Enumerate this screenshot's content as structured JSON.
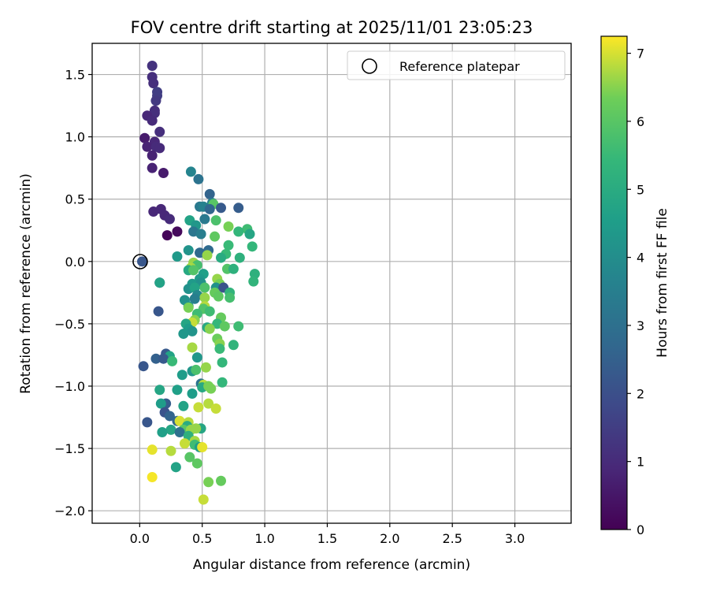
{
  "chart_data": {
    "type": "scatter",
    "title": "FOV centre drift starting at 2025/11/01 23:05:23",
    "xlabel": "Angular distance from reference (arcmin)",
    "ylabel": "Rotation from reference (arcmin)",
    "xlim": [
      -0.38,
      3.45
    ],
    "ylim": [
      -2.1,
      1.75
    ],
    "xticks": [
      "0.0",
      "0.5",
      "1.0",
      "1.5",
      "2.0",
      "2.5",
      "3.0"
    ],
    "yticks": [
      "1.5",
      "1.0",
      "0.5",
      "0.0",
      "−0.5",
      "−1.0",
      "−1.5",
      "−2.0"
    ],
    "grid": true,
    "legend": {
      "position": "top-right",
      "entries": [
        "Reference platepar"
      ]
    },
    "colorbar": {
      "label": "Hours from first FF file",
      "range": [
        0,
        7.25
      ],
      "ticks": [
        "0",
        "1",
        "2",
        "3",
        "4",
        "5",
        "6",
        "7"
      ],
      "colormap": "viridis"
    },
    "reference": {
      "x": 0.0,
      "y": 0.0
    },
    "points": [
      {
        "x": 0.1,
        "y": 1.57,
        "h": 1.2
      },
      {
        "x": 0.1,
        "y": 1.48,
        "h": 1.1
      },
      {
        "x": 0.11,
        "y": 1.43,
        "h": 1.1
      },
      {
        "x": 0.14,
        "y": 1.36,
        "h": 1.5
      },
      {
        "x": 0.14,
        "y": 1.33,
        "h": 1.5
      },
      {
        "x": 0.13,
        "y": 1.29,
        "h": 1.4
      },
      {
        "x": 0.12,
        "y": 1.21,
        "h": 1.1
      },
      {
        "x": 0.12,
        "y": 1.19,
        "h": 1.1
      },
      {
        "x": 0.06,
        "y": 1.17,
        "h": 0.9
      },
      {
        "x": 0.1,
        "y": 1.13,
        "h": 1.0
      },
      {
        "x": 0.16,
        "y": 1.04,
        "h": 1.1
      },
      {
        "x": 0.04,
        "y": 0.99,
        "h": 0.6
      },
      {
        "x": 0.12,
        "y": 0.96,
        "h": 0.9
      },
      {
        "x": 0.06,
        "y": 0.92,
        "h": 0.8
      },
      {
        "x": 0.13,
        "y": 0.92,
        "h": 1.0
      },
      {
        "x": 0.16,
        "y": 0.91,
        "h": 1.0
      },
      {
        "x": 0.1,
        "y": 0.85,
        "h": 0.8
      },
      {
        "x": 0.1,
        "y": 0.75,
        "h": 0.8
      },
      {
        "x": 0.19,
        "y": 0.71,
        "h": 0.6
      },
      {
        "x": 0.11,
        "y": 0.4,
        "h": 0.9
      },
      {
        "x": 0.17,
        "y": 0.42,
        "h": 0.9
      },
      {
        "x": 0.2,
        "y": 0.37,
        "h": 0.9
      },
      {
        "x": 0.24,
        "y": 0.34,
        "h": 1.0
      },
      {
        "x": 0.3,
        "y": 0.24,
        "h": 0.2
      },
      {
        "x": 0.22,
        "y": 0.21,
        "h": 0.1
      },
      {
        "x": 0.41,
        "y": 0.72,
        "h": 3.7
      },
      {
        "x": 0.47,
        "y": 0.66,
        "h": 3.1
      },
      {
        "x": 0.56,
        "y": 0.54,
        "h": 2.6
      },
      {
        "x": 0.58,
        "y": 0.47,
        "h": 3.5
      },
      {
        "x": 0.59,
        "y": 0.46,
        "h": 6.0
      },
      {
        "x": 0.48,
        "y": 0.44,
        "h": 3.3
      },
      {
        "x": 0.51,
        "y": 0.44,
        "h": 3.6
      },
      {
        "x": 0.56,
        "y": 0.42,
        "h": 2.7
      },
      {
        "x": 0.65,
        "y": 0.43,
        "h": 2.3
      },
      {
        "x": 0.79,
        "y": 0.43,
        "h": 2.4
      },
      {
        "x": 0.52,
        "y": 0.34,
        "h": 3.3
      },
      {
        "x": 0.61,
        "y": 0.33,
        "h": 5.8
      },
      {
        "x": 0.4,
        "y": 0.33,
        "h": 4.7
      },
      {
        "x": 0.45,
        "y": 0.29,
        "h": 4.3
      },
      {
        "x": 0.71,
        "y": 0.28,
        "h": 6.4
      },
      {
        "x": 0.86,
        "y": 0.26,
        "h": 5.6
      },
      {
        "x": 0.79,
        "y": 0.24,
        "h": 5.4
      },
      {
        "x": 0.43,
        "y": 0.24,
        "h": 3.2
      },
      {
        "x": 0.49,
        "y": 0.22,
        "h": 3.5
      },
      {
        "x": 0.88,
        "y": 0.22,
        "h": 4.8
      },
      {
        "x": 0.6,
        "y": 0.2,
        "h": 6.1
      },
      {
        "x": 0.71,
        "y": 0.13,
        "h": 5.5
      },
      {
        "x": 0.9,
        "y": 0.12,
        "h": 5.4
      },
      {
        "x": 0.39,
        "y": 0.09,
        "h": 4.2
      },
      {
        "x": 0.55,
        "y": 0.09,
        "h": 2.8
      },
      {
        "x": 0.48,
        "y": 0.07,
        "h": 2.8
      },
      {
        "x": 0.69,
        "y": 0.06,
        "h": 5.5
      },
      {
        "x": 0.3,
        "y": 0.04,
        "h": 4.4
      },
      {
        "x": 0.54,
        "y": 0.05,
        "h": 6.6
      },
      {
        "x": 0.65,
        "y": 0.03,
        "h": 5.0
      },
      {
        "x": 0.8,
        "y": 0.03,
        "h": 5.2
      },
      {
        "x": 0.43,
        "y": -0.01,
        "h": 6.6
      },
      {
        "x": 0.46,
        "y": -0.03,
        "h": 5.7
      },
      {
        "x": 0.41,
        "y": -0.05,
        "h": 6.7
      },
      {
        "x": 0.39,
        "y": -0.07,
        "h": 4.9
      },
      {
        "x": 0.43,
        "y": -0.07,
        "h": 5.9
      },
      {
        "x": 0.7,
        "y": -0.06,
        "h": 5.9
      },
      {
        "x": 0.75,
        "y": -0.06,
        "h": 5.2
      },
      {
        "x": 0.51,
        "y": -0.1,
        "h": 4.6
      },
      {
        "x": 0.92,
        "y": -0.1,
        "h": 5.2
      },
      {
        "x": 0.48,
        "y": -0.14,
        "h": 4.4
      },
      {
        "x": 0.62,
        "y": -0.14,
        "h": 6.6
      },
      {
        "x": 0.91,
        "y": -0.16,
        "h": 5.3
      },
      {
        "x": 0.16,
        "y": -0.17,
        "h": 1.8
      },
      {
        "x": 0.16,
        "y": -0.17,
        "h": 4.7
      },
      {
        "x": 0.42,
        "y": -0.18,
        "h": 4.4
      },
      {
        "x": 0.49,
        "y": -0.17,
        "h": 4.1
      },
      {
        "x": 0.64,
        "y": -0.18,
        "h": 6.4
      },
      {
        "x": 0.39,
        "y": -0.22,
        "h": 4.1
      },
      {
        "x": 0.44,
        "y": -0.21,
        "h": 4.7
      },
      {
        "x": 0.52,
        "y": -0.21,
        "h": 5.8
      },
      {
        "x": 0.61,
        "y": -0.21,
        "h": 4.1
      },
      {
        "x": 0.67,
        "y": -0.21,
        "h": 2.1
      },
      {
        "x": 0.6,
        "y": -0.25,
        "h": 6.2
      },
      {
        "x": 0.72,
        "y": -0.25,
        "h": 5.3
      },
      {
        "x": 0.46,
        "y": -0.27,
        "h": 3.8
      },
      {
        "x": 0.52,
        "y": -0.29,
        "h": 6.6
      },
      {
        "x": 0.63,
        "y": -0.28,
        "h": 6.1
      },
      {
        "x": 0.72,
        "y": -0.29,
        "h": 5.7
      },
      {
        "x": 0.36,
        "y": -0.31,
        "h": 4.1
      },
      {
        "x": 0.44,
        "y": -0.3,
        "h": 3.5
      },
      {
        "x": 0.39,
        "y": -0.36,
        "h": 4.2
      },
      {
        "x": 0.39,
        "y": -0.37,
        "h": 6.4
      },
      {
        "x": 0.52,
        "y": -0.36,
        "h": 6.8
      },
      {
        "x": 0.51,
        "y": -0.38,
        "h": 5.9
      },
      {
        "x": 0.56,
        "y": -0.4,
        "h": 5.6
      },
      {
        "x": 0.15,
        "y": -0.4,
        "h": 2.2
      },
      {
        "x": 0.46,
        "y": -0.42,
        "h": 5.6
      },
      {
        "x": 0.65,
        "y": -0.45,
        "h": 6.2
      },
      {
        "x": 0.44,
        "y": -0.47,
        "h": 6.5
      },
      {
        "x": 0.42,
        "y": -0.49,
        "h": 6.9
      },
      {
        "x": 0.62,
        "y": -0.5,
        "h": 5.4
      },
      {
        "x": 0.68,
        "y": -0.52,
        "h": 6.1
      },
      {
        "x": 0.79,
        "y": -0.52,
        "h": 5.6
      },
      {
        "x": 0.37,
        "y": -0.5,
        "h": 4.8
      },
      {
        "x": 0.39,
        "y": -0.54,
        "h": 4.5
      },
      {
        "x": 0.42,
        "y": -0.56,
        "h": 4.2
      },
      {
        "x": 0.54,
        "y": -0.53,
        "h": 4.9
      },
      {
        "x": 0.56,
        "y": -0.54,
        "h": 6.5
      },
      {
        "x": 0.35,
        "y": -0.58,
        "h": 4.3
      },
      {
        "x": 0.62,
        "y": -0.62,
        "h": 6.3
      },
      {
        "x": 0.64,
        "y": -0.66,
        "h": 6.5
      },
      {
        "x": 0.75,
        "y": -0.67,
        "h": 5.3
      },
      {
        "x": 0.42,
        "y": -0.69,
        "h": 6.7
      },
      {
        "x": 0.64,
        "y": -0.7,
        "h": 5.5
      },
      {
        "x": 0.21,
        "y": -0.74,
        "h": 2.3
      },
      {
        "x": 0.24,
        "y": -0.76,
        "h": 4.7
      },
      {
        "x": 0.46,
        "y": -0.77,
        "h": 4.3
      },
      {
        "x": 0.13,
        "y": -0.78,
        "h": 2.5
      },
      {
        "x": 0.19,
        "y": -0.78,
        "h": 2.3
      },
      {
        "x": 0.26,
        "y": -0.8,
        "h": 5.5
      },
      {
        "x": 0.66,
        "y": -0.81,
        "h": 5.4
      },
      {
        "x": 0.03,
        "y": -0.84,
        "h": 2.2
      },
      {
        "x": 0.53,
        "y": -0.85,
        "h": 6.6
      },
      {
        "x": 0.42,
        "y": -0.88,
        "h": 4.3
      },
      {
        "x": 0.34,
        "y": -0.91,
        "h": 4.5
      },
      {
        "x": 0.45,
        "y": -0.87,
        "h": 5.8
      },
      {
        "x": 0.66,
        "y": -0.97,
        "h": 5.4
      },
      {
        "x": 0.49,
        "y": -0.98,
        "h": 3.1
      },
      {
        "x": 0.51,
        "y": -0.99,
        "h": 6.8
      },
      {
        "x": 0.5,
        "y": -1.01,
        "h": 4.9
      },
      {
        "x": 0.55,
        "y": -1.0,
        "h": 6.4
      },
      {
        "x": 0.57,
        "y": -1.02,
        "h": 6.4
      },
      {
        "x": 0.16,
        "y": -1.03,
        "h": 4.8
      },
      {
        "x": 0.3,
        "y": -1.03,
        "h": 4.6
      },
      {
        "x": 0.42,
        "y": -1.06,
        "h": 4.5
      },
      {
        "x": 0.21,
        "y": -1.14,
        "h": 2.4
      },
      {
        "x": 0.17,
        "y": -1.14,
        "h": 4.5
      },
      {
        "x": 0.35,
        "y": -1.16,
        "h": 4.7
      },
      {
        "x": 0.55,
        "y": -1.14,
        "h": 6.8
      },
      {
        "x": 0.61,
        "y": -1.18,
        "h": 6.9
      },
      {
        "x": 0.47,
        "y": -1.17,
        "h": 6.9
      },
      {
        "x": 0.2,
        "y": -1.21,
        "h": 2.1
      },
      {
        "x": 0.24,
        "y": -1.24,
        "h": 2.6
      },
      {
        "x": 0.3,
        "y": -1.28,
        "h": 2.7
      },
      {
        "x": 0.06,
        "y": -1.29,
        "h": 2.2
      },
      {
        "x": 0.32,
        "y": -1.28,
        "h": 7.0
      },
      {
        "x": 0.39,
        "y": -1.29,
        "h": 6.8
      },
      {
        "x": 0.38,
        "y": -1.32,
        "h": 5.0
      },
      {
        "x": 0.35,
        "y": -1.35,
        "h": 6.0
      },
      {
        "x": 0.25,
        "y": -1.35,
        "h": 4.8
      },
      {
        "x": 0.41,
        "y": -1.35,
        "h": 6.6
      },
      {
        "x": 0.49,
        "y": -1.34,
        "h": 4.8
      },
      {
        "x": 0.45,
        "y": -1.34,
        "h": 6.6
      },
      {
        "x": 0.18,
        "y": -1.37,
        "h": 4.6
      },
      {
        "x": 0.32,
        "y": -1.37,
        "h": 3.0
      },
      {
        "x": 0.39,
        "y": -1.4,
        "h": 5.2
      },
      {
        "x": 0.44,
        "y": -1.44,
        "h": 6.7
      },
      {
        "x": 0.36,
        "y": -1.46,
        "h": 6.9
      },
      {
        "x": 0.44,
        "y": -1.47,
        "h": 5.6
      },
      {
        "x": 0.48,
        "y": -1.49,
        "h": 4.5
      },
      {
        "x": 0.5,
        "y": -1.49,
        "h": 7.1
      },
      {
        "x": 0.1,
        "y": -1.51,
        "h": 7.1
      },
      {
        "x": 0.25,
        "y": -1.52,
        "h": 6.8
      },
      {
        "x": 0.4,
        "y": -1.57,
        "h": 6.0
      },
      {
        "x": 0.46,
        "y": -1.62,
        "h": 6.1
      },
      {
        "x": 0.29,
        "y": -1.65,
        "h": 4.7
      },
      {
        "x": 0.1,
        "y": -1.73,
        "h": 7.2
      },
      {
        "x": 0.55,
        "y": -1.77,
        "h": 6.4
      },
      {
        "x": 0.65,
        "y": -1.76,
        "h": 6.2
      },
      {
        "x": 0.51,
        "y": -1.91,
        "h": 6.9
      },
      {
        "x": 0.02,
        "y": 0.0,
        "h": 2.2
      }
    ]
  }
}
